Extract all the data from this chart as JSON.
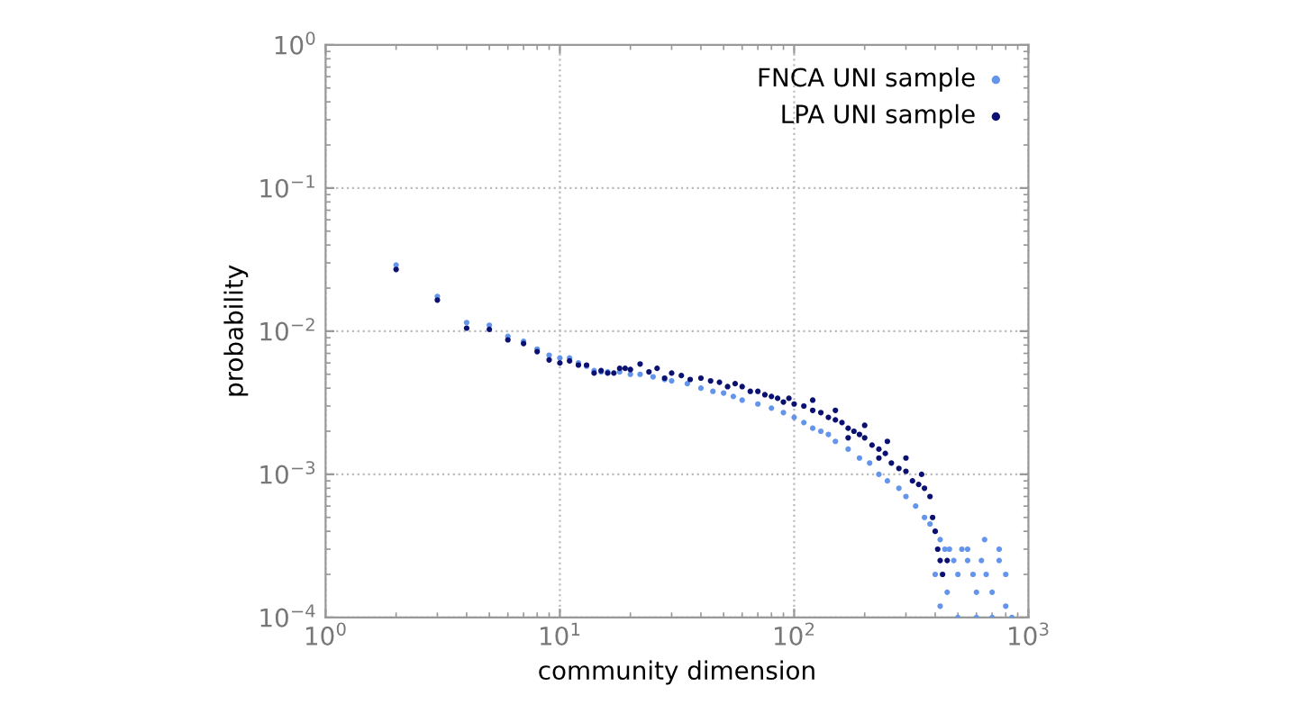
{
  "chart_data": {
    "type": "scatter",
    "xlabel": "community dimension",
    "ylabel": "probability",
    "log": "xy",
    "grid": true,
    "legend": "top right",
    "marker": "circle",
    "xlim": [
      1,
      1000
    ],
    "ylim": [
      0.0001,
      1
    ],
    "xticks": [
      {
        "value": 1,
        "label": "10$^{0}$"
      },
      {
        "value": 10,
        "label": "10$^{1}$"
      },
      {
        "value": 100,
        "label": "10$^{2}$"
      },
      {
        "value": 1000,
        "label": "10$^{3}$"
      }
    ],
    "yticks": [
      {
        "value": 0.0001,
        "label": "10$^{−4}$"
      },
      {
        "value": 0.001,
        "label": "10$^{−3}$"
      },
      {
        "value": 0.01,
        "label": "10$^{−2}$"
      },
      {
        "value": 0.1,
        "label": "10$^{−1}$"
      },
      {
        "value": 1,
        "label": "10$^{0}$"
      }
    ],
    "series": [
      {
        "name": "FNCA UNI sample",
        "color": "#6495ed",
        "x": [
          2,
          3,
          4,
          5,
          6,
          7,
          8,
          9,
          10,
          11,
          12,
          13,
          14,
          15,
          16,
          18,
          20,
          22,
          25,
          28,
          30,
          35,
          40,
          45,
          50,
          55,
          60,
          70,
          80,
          90,
          100,
          110,
          120,
          130,
          140,
          150,
          170,
          190,
          210,
          230,
          250,
          280,
          300,
          330,
          360,
          380,
          400,
          420,
          440,
          460,
          480,
          500,
          520,
          550,
          580,
          600,
          630,
          660,
          700,
          750,
          800,
          850,
          400,
          450,
          500,
          600,
          700,
          800,
          550,
          650,
          750,
          420
        ],
        "values": [
          0.029,
          0.0175,
          0.0115,
          0.011,
          0.0092,
          0.0085,
          0.0075,
          0.0068,
          0.0065,
          0.0065,
          0.006,
          0.0057,
          0.0053,
          0.0052,
          0.0052,
          0.0052,
          0.005,
          0.005,
          0.0048,
          0.0046,
          0.0045,
          0.0043,
          0.004,
          0.0038,
          0.0037,
          0.0035,
          0.0033,
          0.0031,
          0.0029,
          0.0027,
          0.0025,
          0.0023,
          0.0021,
          0.002,
          0.0019,
          0.0017,
          0.0015,
          0.0013,
          0.0012,
          0.001,
          0.0009,
          0.0008,
          0.0007,
          0.0006,
          0.0005,
          0.00045,
          0.0004,
          0.00035,
          0.0003,
          0.0003,
          0.00025,
          0.0002,
          0.0003,
          0.00025,
          0.0002,
          0.00015,
          0.00025,
          0.0002,
          0.00015,
          0.0003,
          0.0002,
          0.0001,
          0.0002,
          0.00015,
          0.0001,
          0.0001,
          0.0001,
          0.00012,
          0.0003,
          0.00035,
          0.00025,
          0.00012
        ]
      },
      {
        "name": "LPA UNI sample",
        "color": "#0a1172",
        "x": [
          2,
          3,
          4,
          5,
          6,
          7,
          8,
          9,
          10,
          11,
          12,
          13,
          14,
          15,
          16,
          17,
          18,
          19,
          20,
          22,
          24,
          26,
          28,
          30,
          33,
          36,
          40,
          44,
          48,
          52,
          56,
          60,
          65,
          70,
          75,
          80,
          85,
          90,
          95,
          100,
          110,
          120,
          130,
          140,
          150,
          160,
          170,
          180,
          190,
          200,
          215,
          230,
          245,
          260,
          280,
          300,
          320,
          340,
          360,
          380,
          390,
          400,
          410,
          420,
          430,
          450,
          120,
          150,
          200,
          250,
          300,
          350,
          170,
          230
        ],
        "values": [
          0.027,
          0.0165,
          0.0105,
          0.0103,
          0.0087,
          0.0082,
          0.0072,
          0.0063,
          0.006,
          0.0062,
          0.0058,
          0.0058,
          0.0051,
          0.0053,
          0.0051,
          0.0051,
          0.0055,
          0.0055,
          0.0054,
          0.0059,
          0.0052,
          0.0055,
          0.0047,
          0.0051,
          0.0049,
          0.0046,
          0.0047,
          0.0045,
          0.0044,
          0.0041,
          0.0043,
          0.0041,
          0.0038,
          0.0038,
          0.0036,
          0.0035,
          0.0034,
          0.0032,
          0.0034,
          0.0031,
          0.003,
          0.0028,
          0.0027,
          0.0025,
          0.0024,
          0.0023,
          0.0021,
          0.002,
          0.0019,
          0.0018,
          0.0016,
          0.0015,
          0.0014,
          0.0012,
          0.0011,
          0.00105,
          0.0009,
          0.00085,
          0.0008,
          0.0007,
          0.0005,
          0.0004,
          0.0003,
          0.00025,
          0.0002,
          0.00025,
          0.0033,
          0.0028,
          0.0022,
          0.0017,
          0.0013,
          0.001,
          0.0018,
          0.0013
        ]
      }
    ]
  }
}
